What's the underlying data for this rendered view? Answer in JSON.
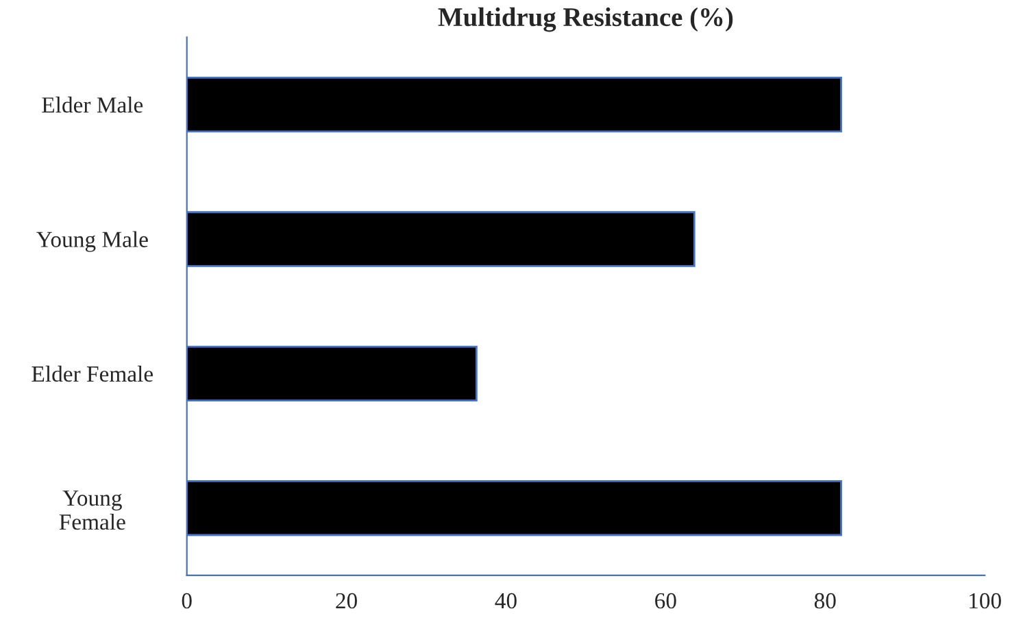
{
  "chart_data": {
    "type": "bar",
    "orientation": "horizontal",
    "title": "Multidrug Resistance (%)",
    "categories": [
      "Elder Male",
      "Young Male",
      "Elder Female",
      "Young\nFemale"
    ],
    "values": [
      82,
      63.6,
      36.3,
      82
    ],
    "color": "#000000",
    "xlim": [
      0,
      100
    ],
    "xticks": [
      0,
      20,
      40,
      60,
      80,
      100
    ],
    "grid": false,
    "legend": false
  }
}
